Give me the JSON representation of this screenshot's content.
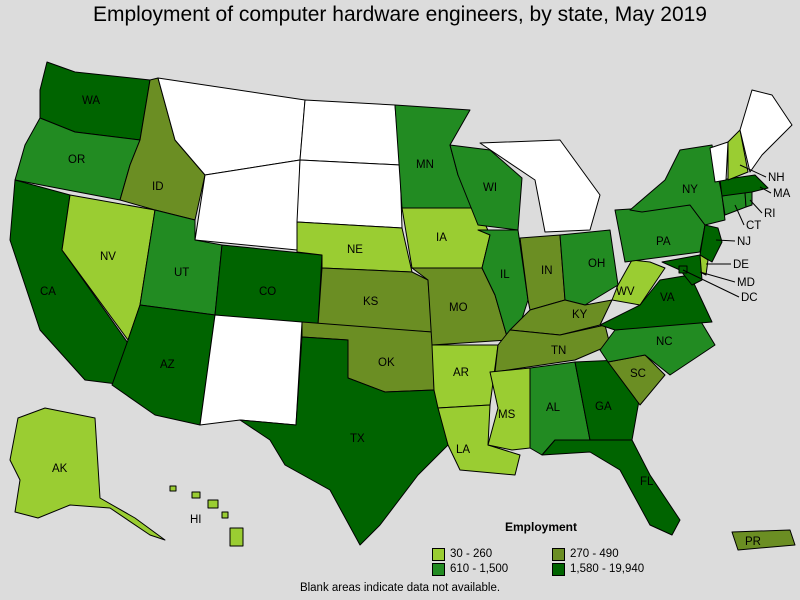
{
  "title": "Employment of computer hardware engineers, by state, May 2019",
  "colors": {
    "c1": "#9acd32",
    "c2": "#6b8e23",
    "c3": "#228b22",
    "c4": "#006400",
    "blank": "#ffffff"
  },
  "legend": {
    "title": "Employment",
    "items": [
      {
        "label": "30 - 260",
        "color": "#9acd32"
      },
      {
        "label": "270 - 490",
        "color": "#6b8e23"
      },
      {
        "label": "610 - 1,500",
        "color": "#228b22"
      },
      {
        "label": "1,580 - 19,940",
        "color": "#006400"
      }
    ]
  },
  "states": {
    "WA": "c4",
    "OR": "c3",
    "CA": "c4",
    "NV": "c1",
    "ID": "c2",
    "MT": "blank",
    "WY": "blank",
    "UT": "c3",
    "AZ": "c4",
    "CO": "c4",
    "NM": "blank",
    "ND": "blank",
    "SD": "blank",
    "NE": "c1",
    "KS": "c2",
    "OK": "c2",
    "TX": "c4",
    "MN": "c3",
    "IA": "c1",
    "MO": "c2",
    "AR": "c1",
    "LA": "c1",
    "WI": "c3",
    "IL": "c3",
    "MI": "blank",
    "IN": "c2",
    "OH": "c3",
    "KY": "c2",
    "TN": "c2",
    "MS": "c1",
    "AL": "c3",
    "GA": "c4",
    "FL": "c4",
    "SC": "c2",
    "NC": "c3",
    "VA": "c4",
    "WV": "c1",
    "PA": "c3",
    "NY": "c3",
    "NJ": "c4",
    "DE": "c1",
    "MD": "c4",
    "DC": "c4",
    "CT": "c3",
    "RI": "c3",
    "MA": "c4",
    "VT": "blank",
    "NH": "c1",
    "ME": "blank",
    "AK": "c1",
    "HI": "c1",
    "PR": "c2"
  },
  "footnote": "Blank areas indicate data not available."
}
